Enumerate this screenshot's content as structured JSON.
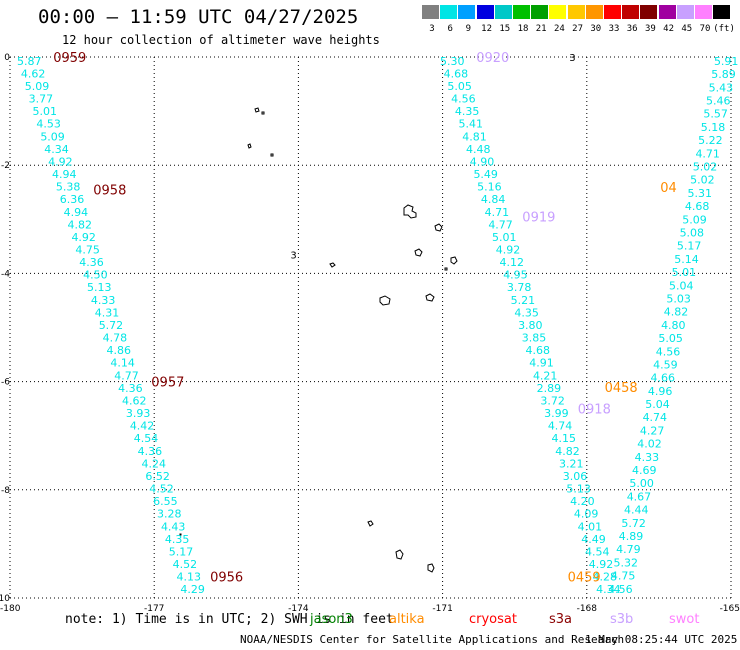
{
  "header": {
    "title": "00:00 – 11:59 UTC 04/27/2025",
    "subtitle": "12 hour collection of altimeter wave heights"
  },
  "colorbar": {
    "labels": [
      "3",
      "6",
      "9",
      "12",
      "15",
      "18",
      "21",
      "24",
      "27",
      "30",
      "33",
      "36",
      "39",
      "42",
      "45",
      "70",
      "(ft)"
    ],
    "colors": [
      "#808080",
      "#00e5e5",
      "#00a0ff",
      "#0000e0",
      "#00c8c8",
      "#00c000",
      "#00a000",
      "#ffff00",
      "#ffc800",
      "#ff9600",
      "#ff0000",
      "#c00000",
      "#800000",
      "#a000a0",
      "#c8a0ff",
      "#ff80ff",
      "#000000"
    ]
  },
  "footer": {
    "note": "note: 1) Time is in UTC; 2) SWH is in feet",
    "satellites": [
      {
        "name": "jason3",
        "color": "#008000"
      },
      {
        "name": "altika",
        "color": "#ff8c00"
      },
      {
        "name": "cryosat",
        "color": "#ff0000"
      },
      {
        "name": "s3a",
        "color": "#8b0000"
      },
      {
        "name": "s3b",
        "color": "#c8a0ff"
      },
      {
        "name": "swot",
        "color": "#ff80ff"
      }
    ],
    "credit": "NOAA/NESDIS Center for Satellite Applications and Research",
    "timestamp": "1 May 08:25:44 UTC 2025"
  },
  "chart_data": {
    "type": "scatter",
    "xlim": [
      -180,
      -165
    ],
    "ylim": [
      -10,
      0
    ],
    "grid": true,
    "x_ticks": [
      "-180",
      "-177",
      "-174",
      "-171",
      "-168",
      "-165"
    ],
    "y_ticks": [
      "0",
      "-2",
      "-4",
      "-6",
      "-8",
      "-10"
    ],
    "value_color": "#00e5e5",
    "tracks": [
      {
        "x0": -179.6,
        "x1": -176.2,
        "values": [
          "5.87",
          "4.62",
          "5.09",
          "3.77",
          "5.01",
          "4.53",
          "5.09",
          "4.34",
          "4.92",
          "4.94",
          "5.38",
          "6.36",
          "4.94",
          "4.82",
          "4.92",
          "4.75",
          "4.36",
          "4.50",
          "5.13",
          "4.33",
          "4.31",
          "5.72",
          "4.78",
          "4.86",
          "4.14",
          "4.77",
          "4.36",
          "4.62",
          "3.93",
          "4.42",
          "4.54",
          "4.36",
          "4.24",
          "6.52",
          "4.52",
          "6.55",
          "3.28",
          "4.43",
          "4.35",
          "5.17",
          "4.52",
          "4.13",
          "4.29"
        ],
        "times": [
          {
            "label": "0959",
            "lat": 0.0,
            "color": "#800000"
          },
          {
            "label": "0958",
            "lat": -2.45,
            "color": "#800000"
          },
          {
            "label": "0957",
            "lat": -6.0,
            "color": "#800000"
          },
          {
            "label": "0956",
            "lat": -9.6,
            "color": "#800000"
          }
        ]
      },
      {
        "x0": -170.8,
        "x1": -167.55,
        "values": [
          "5.30",
          "4.68",
          "5.05",
          "4.56",
          "4.35",
          "5.41",
          "4.81",
          "4.48",
          "4.90",
          "5.49",
          "5.16",
          "4.84",
          "4.71",
          "4.77",
          "5.01",
          "4.92",
          "4.12",
          "4.95",
          "3.78",
          "5.21",
          "4.35",
          "3.80",
          "3.85",
          "4.68",
          "4.91",
          "4.21",
          "2.89",
          "3.72",
          "3.99",
          "4.74",
          "4.15",
          "4.82",
          "3.21",
          "3.06",
          "5.13",
          "4.20",
          "4.09",
          "4.01",
          "4.49",
          "4.54",
          "4.92",
          "4.28",
          "4.34"
        ],
        "times": [
          {
            "label": "0920",
            "lat": 0.0,
            "color": "#c8a0ff"
          },
          {
            "label": "0919",
            "lat": -2.95,
            "color": "#c8a0ff"
          },
          {
            "label": "0918",
            "lat": -6.5,
            "color": "#c8a0ff"
          }
        ]
      },
      {
        "x0": -165.1,
        "x1": -167.3,
        "values": [
          "5.91",
          "5.89",
          "5.43",
          "5.46",
          "5.57",
          "5.18",
          "5.22",
          "4.71",
          "5.02",
          "5.02",
          "5.31",
          "4.68",
          "5.09",
          "5.08",
          "5.17",
          "5.14",
          "5.01",
          "5.04",
          "5.03",
          "4.82",
          "4.80",
          "5.05",
          "4.56",
          "4.59",
          "4.66",
          "4.96",
          "5.04",
          "4.74",
          "4.27",
          "4.02",
          "4.33",
          "4.69",
          "5.00",
          "4.67",
          "4.44",
          "5.72",
          "4.89",
          "4.79",
          "5.32",
          "4.75",
          "4.56"
        ],
        "times": [
          {
            "label": "04",
            "lat": -2.4,
            "color": "#ff8c00"
          },
          {
            "label": "0458",
            "lat": -6.1,
            "color": "#ff8c00"
          },
          {
            "label": "0459",
            "lat": -9.6,
            "color": "#ff8c00"
          }
        ]
      }
    ],
    "small_labels": [
      {
        "text": "3",
        "lon": -174.1,
        "lat": -3.65
      },
      {
        "text": "3",
        "lon": -168.3,
        "lat": 0.0
      }
    ]
  }
}
